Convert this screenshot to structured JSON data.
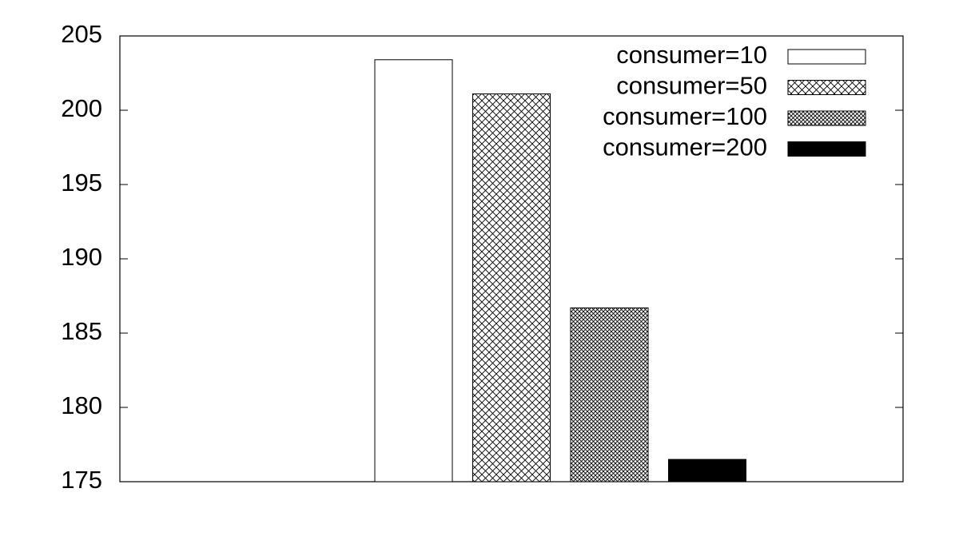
{
  "chart_data": {
    "type": "bar",
    "categories": [
      null
    ],
    "series": [
      {
        "name": "consumer=10",
        "color": "#ffffff",
        "values": [
          203.4
        ]
      },
      {
        "name": "consumer=50",
        "color": "#000000",
        "pattern": "crosshatch",
        "values": [
          201.1
        ]
      },
      {
        "name": "consumer=100",
        "color": "#000000",
        "pattern": "dense-crosshatch",
        "values": [
          186.7
        ]
      },
      {
        "name": "consumer=200",
        "color": "#000000",
        "values": [
          176.5
        ]
      }
    ],
    "ylim": [
      175,
      205
    ],
    "yticks": [
      175,
      180,
      185,
      190,
      195,
      200,
      205
    ],
    "grid": false,
    "legend": "top-right"
  }
}
